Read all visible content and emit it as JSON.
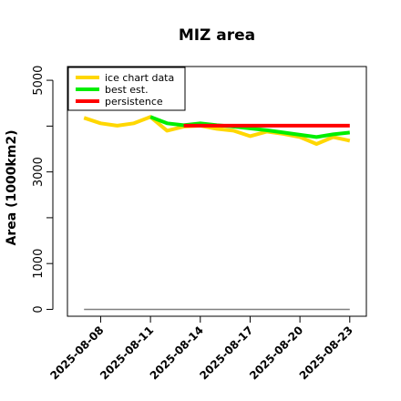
{
  "chart_data": {
    "type": "line",
    "title": "MIZ area",
    "xlabel": "",
    "ylabel": "Area (1000km2)",
    "x_ticks": [
      "2025-08-08",
      "2025-08-11",
      "2025-08-14",
      "2025-08-17",
      "2025-08-20",
      "2025-08-23"
    ],
    "y_ticks": [
      0,
      1000,
      3000,
      5000
    ],
    "ylim": [
      -150,
      5300
    ],
    "xlim": [
      "2025-08-06",
      "2025-08-24"
    ],
    "legend_position": "top-left",
    "grid": false,
    "series": [
      {
        "name": "ice chart data",
        "color": "#FFD700",
        "x": [
          "2025-08-07",
          "2025-08-08",
          "2025-08-09",
          "2025-08-10",
          "2025-08-11",
          "2025-08-12",
          "2025-08-13",
          "2025-08-14",
          "2025-08-15",
          "2025-08-16",
          "2025-08-17",
          "2025-08-18",
          "2025-08-19",
          "2025-08-20",
          "2025-08-21",
          "2025-08-22",
          "2025-08-23"
        ],
        "y": [
          4180,
          4060,
          4010,
          4060,
          4200,
          3900,
          3990,
          4010,
          3940,
          3900,
          3780,
          3880,
          3830,
          3760,
          3610,
          3760,
          3680
        ]
      },
      {
        "name": "best est.",
        "color": "#00EE00",
        "x": [
          "2025-08-11",
          "2025-08-12",
          "2025-08-13",
          "2025-08-14",
          "2025-08-15",
          "2025-08-16",
          "2025-08-17",
          "2025-08-18",
          "2025-08-19",
          "2025-08-20",
          "2025-08-21",
          "2025-08-22",
          "2025-08-23"
        ],
        "y": [
          4200,
          4060,
          4020,
          4060,
          4020,
          3990,
          3950,
          3910,
          3860,
          3810,
          3760,
          3820,
          3860
        ]
      },
      {
        "name": "persistence",
        "color": "#FF0000",
        "x": [
          "2025-08-13",
          "2025-08-23"
        ],
        "y": [
          4010,
          4010
        ]
      },
      {
        "name": "",
        "color": "#808080",
        "x": [
          "2025-08-07",
          "2025-08-23"
        ],
        "y": [
          0,
          0
        ]
      }
    ]
  }
}
